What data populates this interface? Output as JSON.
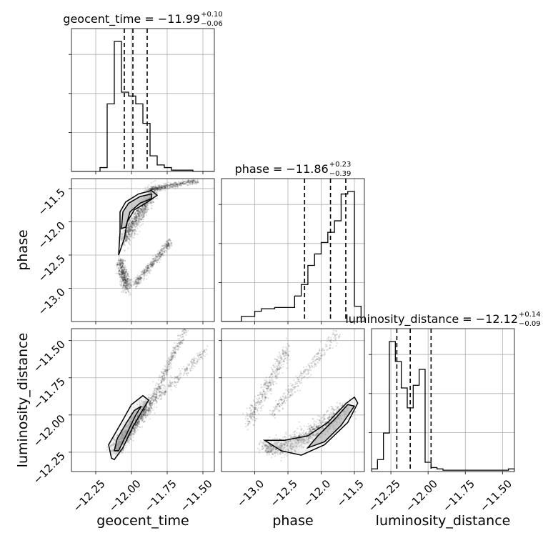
{
  "chart_data": {
    "type": "corner",
    "parameters": [
      "geocent_time",
      "phase",
      "luminosity_distance"
    ],
    "titles": [
      {
        "label": "geocent_time",
        "median": "−11.99",
        "plus": "+0.10",
        "minus": "−0.06"
      },
      {
        "label": "phase",
        "median": "−11.86",
        "plus": "+0.23",
        "minus": "−0.39"
      },
      {
        "label": "luminosity_distance",
        "median": "−12.12",
        "plus": "+0.14",
        "minus": "−0.09"
      }
    ],
    "axes": {
      "geocent_time": {
        "range": [
          -12.42,
          -11.42
        ],
        "ticks": [
          -12.25,
          -12.0,
          -11.75,
          -11.5
        ],
        "tick_labels": [
          "−12.25",
          "−12.00",
          "−11.75",
          "−11.50"
        ]
      },
      "phase": {
        "range": [
          -13.5,
          -11.35
        ],
        "ticks": [
          -13.0,
          -12.5,
          -12.0,
          -11.5
        ],
        "tick_labels": [
          "−13.0",
          "−12.5",
          "−12.0",
          "−11.5"
        ]
      },
      "luminosity_distance": {
        "range": [
          -12.38,
          -11.42
        ],
        "ticks": [
          -12.25,
          -12.0,
          -11.75,
          -11.5
        ],
        "tick_labels": [
          "−12.25",
          "−12.00",
          "−11.75",
          "−11.50"
        ]
      }
    },
    "histograms": {
      "geocent_time": {
        "bin_edges": [
          -12.42,
          -12.37,
          -12.32,
          -12.27,
          -12.22,
          -12.17,
          -12.12,
          -12.07,
          -12.02,
          -11.97,
          -11.92,
          -11.87,
          -11.82,
          -11.77,
          -11.72,
          -11.67,
          -11.62,
          -11.57,
          -11.52,
          -11.47,
          -11.42
        ],
        "counts": [
          0,
          0,
          0,
          0,
          0.03,
          0.52,
          1.0,
          0.61,
          0.58,
          0.52,
          0.37,
          0.12,
          0.05,
          0.03,
          0.01,
          0.01,
          0.01,
          0,
          0,
          0
        ],
        "quantiles": [
          -12.05,
          -11.99,
          -11.89
        ]
      },
      "phase": {
        "bin_edges": [
          -13.5,
          -13.4,
          -13.3,
          -13.2,
          -13.1,
          -13.0,
          -12.9,
          -12.8,
          -12.7,
          -12.6,
          -12.5,
          -12.4,
          -12.3,
          -12.2,
          -12.1,
          -12.0,
          -11.9,
          -11.8,
          -11.7,
          -11.6,
          -11.5,
          -11.4,
          -11.35
        ],
        "counts": [
          0,
          0,
          0,
          0.04,
          0.04,
          0.08,
          0.1,
          0.1,
          0.11,
          0.11,
          0.11,
          0.2,
          0.29,
          0.44,
          0.53,
          0.62,
          0.7,
          0.79,
          1.0,
          1.02,
          0.12,
          0
        ],
        "quantiles": [
          -12.25,
          -11.86,
          -11.63
        ]
      },
      "luminosity_distance": {
        "bin_edges": [
          -12.38,
          -12.34,
          -12.3,
          -12.26,
          -12.22,
          -12.18,
          -12.14,
          -12.1,
          -12.06,
          -12.02,
          -11.98,
          -11.94,
          -11.9,
          -11.86,
          -11.82,
          -11.78,
          -11.74,
          -11.7,
          -11.66,
          -11.62,
          -11.58,
          -11.54,
          -11.5,
          -11.46,
          -11.42
        ],
        "counts": [
          0.02,
          0.09,
          0.29,
          0.98,
          0.83,
          0.63,
          0.48,
          0.65,
          0.77,
          0.07,
          0.03,
          0.02,
          0.01,
          0.01,
          0.01,
          0.01,
          0.01,
          0.01,
          0.01,
          0.01,
          0.01,
          0.01,
          0.01,
          0.02
        ],
        "quantiles": [
          -12.21,
          -12.12,
          -11.98
        ]
      }
    },
    "pairs": [
      {
        "x": "geocent_time",
        "y": "phase"
      },
      {
        "x": "geocent_time",
        "y": "luminosity_distance"
      },
      {
        "x": "phase",
        "y": "luminosity_distance"
      }
    ],
    "grid": true,
    "colors": {
      "line": "#000000",
      "quantile": "#000000",
      "grid": "#b0b0b0",
      "points": "#000000",
      "density": "#555555"
    }
  }
}
